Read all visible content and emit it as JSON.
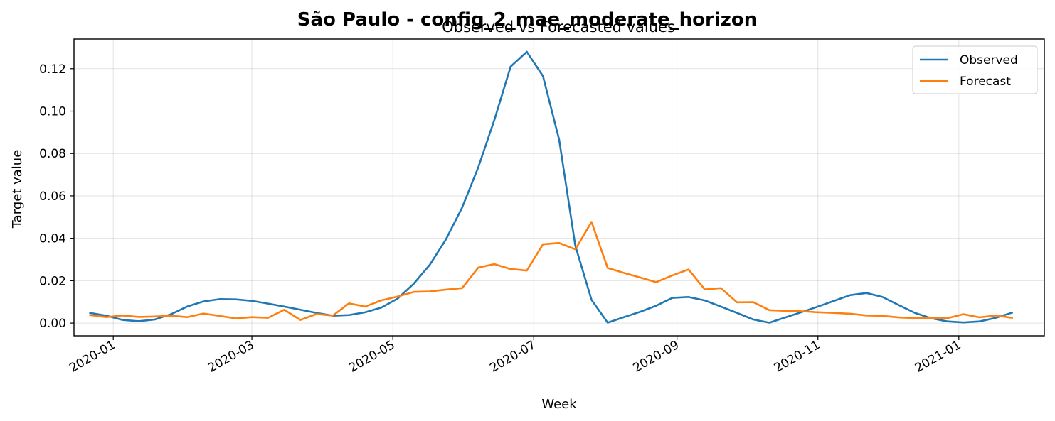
{
  "chart_data": {
    "type": "line",
    "suptitle": "São Paulo - config_2_mae_moderate_horizon",
    "title": "Observed vs Forecasted values",
    "xlabel": "Week",
    "ylabel": "Target value",
    "xlim": [
      "2019-12-15",
      "2021-02-07"
    ],
    "ylim": [
      -0.006,
      0.134
    ],
    "yticks": [
      0.0,
      0.02,
      0.04,
      0.06,
      0.08,
      0.1,
      0.12
    ],
    "ytick_labels": [
      "0.00",
      "0.02",
      "0.04",
      "0.06",
      "0.08",
      "0.10",
      "0.12"
    ],
    "xticks": [
      "2020-01-01",
      "2020-03-01",
      "2020-05-01",
      "2020-07-01",
      "2020-09-01",
      "2020-11-01",
      "2021-01-01"
    ],
    "xtick_labels": [
      "2020-01",
      "2020-03",
      "2020-05",
      "2020-07",
      "2020-09",
      "2020-11",
      "2021-01"
    ],
    "grid": true,
    "legend_position": "top-right",
    "x": [
      "2019-12-22",
      "2019-12-29",
      "2020-01-05",
      "2020-01-12",
      "2020-01-19",
      "2020-01-26",
      "2020-02-02",
      "2020-02-09",
      "2020-02-16",
      "2020-02-23",
      "2020-03-01",
      "2020-03-08",
      "2020-03-15",
      "2020-03-22",
      "2020-03-29",
      "2020-04-05",
      "2020-04-12",
      "2020-04-19",
      "2020-04-26",
      "2020-05-03",
      "2020-05-10",
      "2020-05-17",
      "2020-05-24",
      "2020-05-31",
      "2020-06-07",
      "2020-06-14",
      "2020-06-21",
      "2020-06-28",
      "2020-07-05",
      "2020-07-12",
      "2020-07-19",
      "2020-07-26",
      "2020-08-02",
      "2020-08-09",
      "2020-08-16",
      "2020-08-23",
      "2020-08-30",
      "2020-09-06",
      "2020-09-13",
      "2020-09-20",
      "2020-09-27",
      "2020-10-04",
      "2020-10-11",
      "2020-10-18",
      "2020-10-25",
      "2020-11-01",
      "2020-11-08",
      "2020-11-15",
      "2020-11-22",
      "2020-11-29",
      "2020-12-06",
      "2020-12-13",
      "2020-12-20",
      "2020-12-27",
      "2021-01-03",
      "2021-01-10",
      "2021-01-17",
      "2021-01-24"
    ],
    "series": [
      {
        "name": "Observed",
        "color": "#1f77b4",
        "values": [
          0.0048,
          0.0035,
          0.0015,
          0.0009,
          0.0017,
          0.0042,
          0.0078,
          0.0102,
          0.0113,
          0.0112,
          0.0105,
          0.0092,
          0.0078,
          0.0063,
          0.0048,
          0.0035,
          0.0038,
          0.0051,
          0.0073,
          0.0115,
          0.0185,
          0.0275,
          0.0395,
          0.0545,
          0.0735,
          0.096,
          0.121,
          0.128,
          0.1165,
          0.0865,
          0.0365,
          0.011,
          0.0002,
          0.0028,
          0.0053,
          0.0082,
          0.0119,
          0.0123,
          0.0107,
          0.0078,
          0.0048,
          0.0017,
          0.0002,
          0.0027,
          0.0052,
          0.0078,
          0.0105,
          0.0132,
          0.0142,
          0.0123,
          0.0085,
          0.0048,
          0.0023,
          0.0008,
          0.0003,
          0.0008,
          0.0025,
          0.0049
        ]
      },
      {
        "name": "Forecast",
        "color": "#ff7f0e",
        "values": [
          0.0038,
          0.0028,
          0.0036,
          0.0029,
          0.0031,
          0.0035,
          0.0028,
          0.0045,
          0.0034,
          0.0022,
          0.0028,
          0.0025,
          0.0063,
          0.0015,
          0.0043,
          0.0035,
          0.0093,
          0.0078,
          0.0107,
          0.0125,
          0.0147,
          0.0149,
          0.0158,
          0.0165,
          0.0262,
          0.0278,
          0.0255,
          0.0248,
          0.0372,
          0.0378,
          0.0348,
          0.0477,
          0.026,
          0.0237,
          0.0215,
          0.0193,
          0.0225,
          0.0253,
          0.0159,
          0.0165,
          0.0098,
          0.0099,
          0.0061,
          0.0058,
          0.0056,
          0.0051,
          0.0048,
          0.0044,
          0.0036,
          0.0034,
          0.0027,
          0.0023,
          0.0025,
          0.0023,
          0.0042,
          0.0027,
          0.0036,
          0.0025
        ]
      }
    ]
  }
}
